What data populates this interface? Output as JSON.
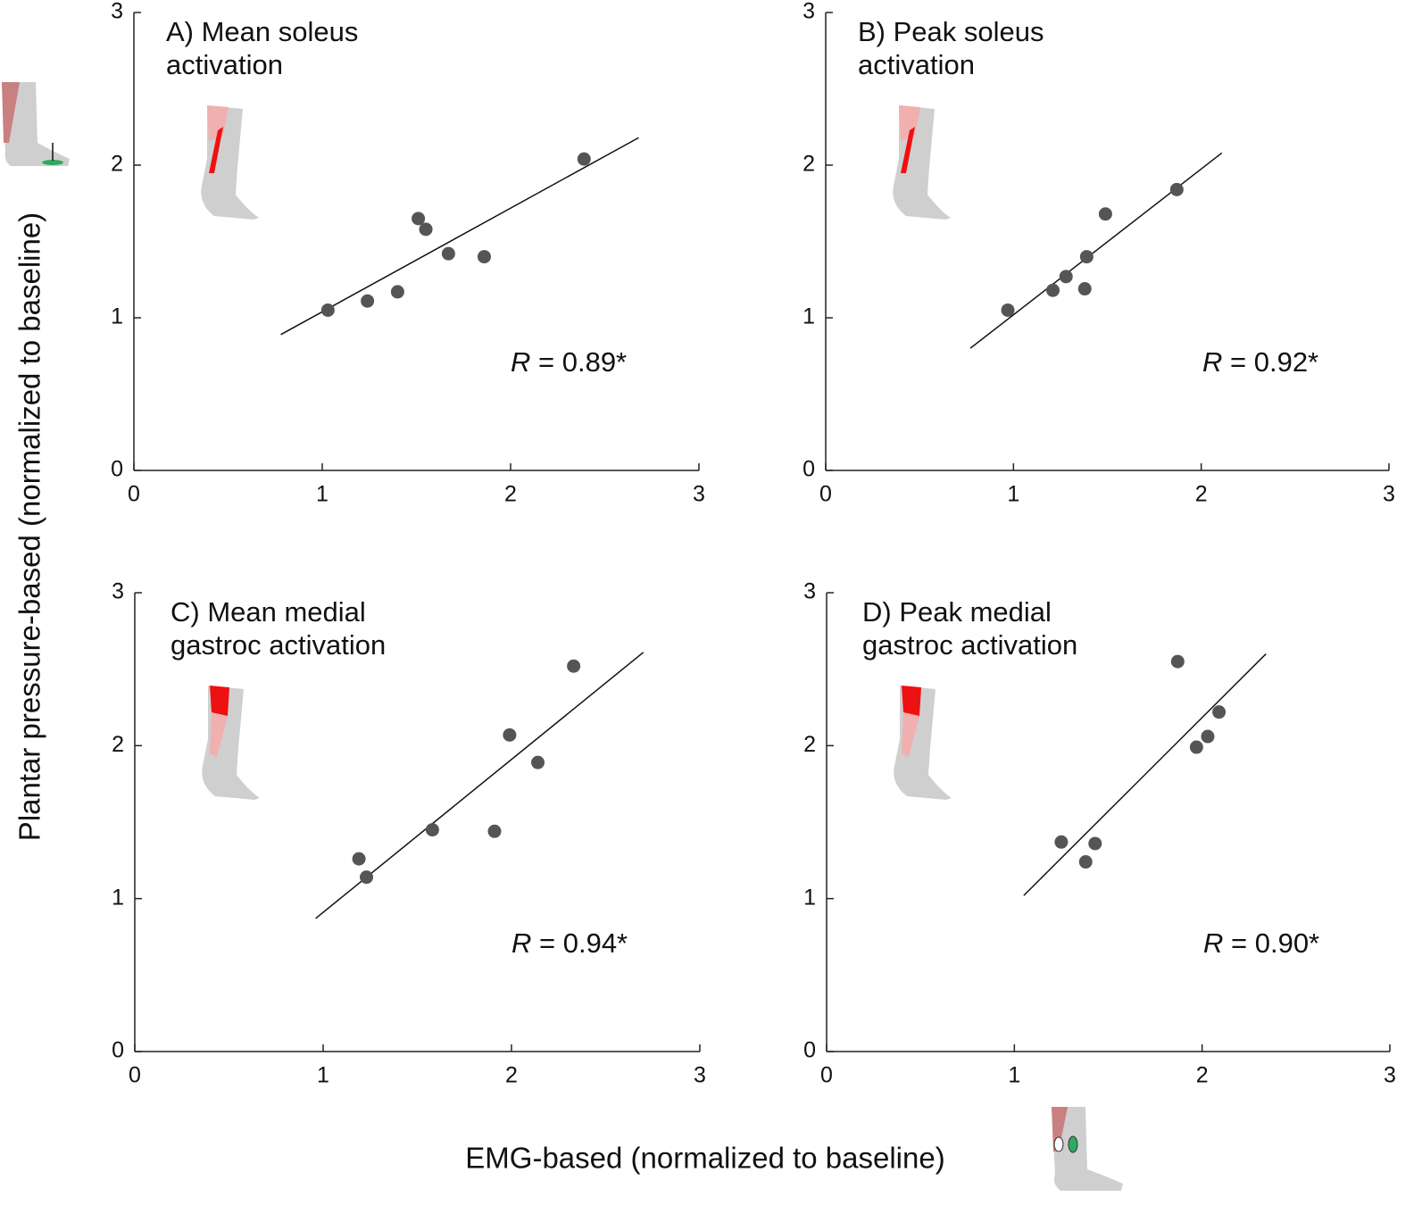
{
  "ylabel": "Plantar pressure-based (normalized to baseline)",
  "xlabel": "EMG-based (normalized to baseline)",
  "chart_data": [
    {
      "type": "scatter",
      "title": [
        "A) Mean soleus",
        "activation"
      ],
      "annotation": [
        "R",
        " = 0.89*"
      ],
      "x": [
        1.03,
        1.24,
        1.4,
        1.51,
        1.55,
        1.67,
        1.86,
        2.39
      ],
      "y": [
        1.05,
        1.11,
        1.17,
        1.65,
        1.58,
        1.42,
        1.4,
        2.04
      ],
      "fit": {
        "x": [
          0.78,
          2.68
        ],
        "y": [
          0.89,
          2.18
        ]
      },
      "color": "#555555",
      "xlim": [
        0,
        3
      ],
      "ylim": [
        0,
        3
      ],
      "xticks": [
        0,
        1,
        2,
        3
      ],
      "yticks": [
        0,
        1,
        2,
        3
      ]
    },
    {
      "type": "scatter",
      "title": [
        "B) Peak soleus",
        "activation"
      ],
      "annotation": [
        "R",
        " = 0.92*"
      ],
      "x": [
        0.97,
        1.21,
        1.28,
        1.38,
        1.39,
        1.49,
        1.87
      ],
      "y": [
        1.05,
        1.18,
        1.27,
        1.19,
        1.4,
        1.68,
        1.84
      ],
      "fit": {
        "x": [
          0.77,
          2.11
        ],
        "y": [
          0.8,
          2.08
        ]
      },
      "color": "#555555",
      "xlim": [
        0,
        3
      ],
      "ylim": [
        0,
        3
      ],
      "xticks": [
        0,
        1,
        2,
        3
      ],
      "yticks": [
        0,
        1,
        2,
        3
      ]
    },
    {
      "type": "scatter",
      "title": [
        "C) Mean medial",
        "gastroc activation"
      ],
      "annotation": [
        "R",
        " = 0.94*"
      ],
      "x": [
        1.19,
        1.23,
        1.58,
        1.91,
        1.99,
        2.14,
        2.33
      ],
      "y": [
        1.26,
        1.14,
        1.45,
        1.44,
        2.07,
        1.89,
        2.52
      ],
      "fit": {
        "x": [
          0.96,
          2.7
        ],
        "y": [
          0.87,
          2.61
        ]
      },
      "color": "#555555",
      "xlim": [
        0,
        3
      ],
      "ylim": [
        0,
        3
      ],
      "xticks": [
        0,
        1,
        2,
        3
      ],
      "yticks": [
        0,
        1,
        2,
        3
      ]
    },
    {
      "type": "scatter",
      "title": [
        "D) Peak medial",
        "gastroc activation"
      ],
      "annotation": [
        "R",
        " = 0.90*"
      ],
      "x": [
        1.25,
        1.38,
        1.43,
        1.87,
        1.97,
        2.03,
        2.09
      ],
      "y": [
        1.37,
        1.24,
        1.36,
        2.55,
        1.99,
        2.06,
        2.22
      ],
      "fit": {
        "x": [
          1.05,
          2.34
        ],
        "y": [
          1.02,
          2.6
        ]
      },
      "color": "#555555",
      "xlim": [
        0,
        3
      ],
      "ylim": [
        0,
        3
      ],
      "xticks": [
        0,
        1,
        2,
        3
      ],
      "yticks": [
        0,
        1,
        2,
        3
      ]
    }
  ]
}
